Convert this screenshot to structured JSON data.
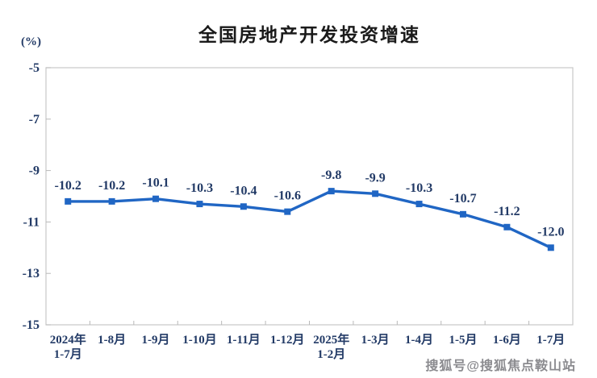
{
  "watermark": {
    "text": "搜狐号@搜狐焦点鞍山站"
  },
  "chart_data": {
    "type": "line",
    "title": "全国房地产开发投资增速",
    "ylabel": "(%)",
    "categories": [
      "2024年\n1-7月",
      "1-8月",
      "1-9月",
      "1-10月",
      "1-11月",
      "1-12月",
      "2025年\n1-2月",
      "1-3月",
      "1-4月",
      "1-5月",
      "1-6月",
      "1-7月"
    ],
    "values": [
      -10.2,
      -10.2,
      -10.1,
      -10.3,
      -10.4,
      -10.6,
      -9.8,
      -9.9,
      -10.3,
      -10.7,
      -11.2,
      -12.0
    ],
    "data_labels": [
      "-10.2",
      "-10.2",
      "-10.1",
      "-10.3",
      "-10.4",
      "-10.6",
      "-9.8",
      "-9.9",
      "-10.3",
      "-10.7",
      "-11.2",
      "-12.0"
    ],
    "ylim": [
      -15,
      -5
    ],
    "y_ticks": [
      -5,
      -7,
      -9,
      -11,
      -13,
      -15
    ],
    "grid": false,
    "legend": "none",
    "marker": "square",
    "colors": {
      "line": "#2066c4",
      "marker": "#2066c4",
      "label_text": "#223a66",
      "title_text": "#1a1a1a",
      "axis_border": "#c8c8c8",
      "watermark": "#8b8b8f"
    }
  }
}
